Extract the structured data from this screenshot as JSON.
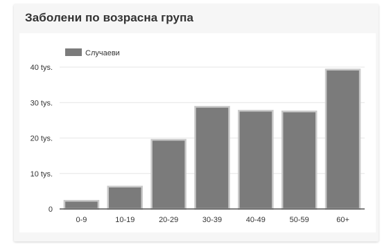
{
  "card": {
    "title": "Заболени по возрасна група"
  },
  "chart_data": {
    "type": "bar",
    "categories": [
      "0-9",
      "10-19",
      "20-29",
      "30-39",
      "40-49",
      "50-59",
      "60+"
    ],
    "series": [
      {
        "name": "Случаеви",
        "values": [
          2300,
          6300,
          19500,
          28800,
          27700,
          27500,
          39300
        ]
      }
    ],
    "ylim": [
      0,
      40000
    ],
    "yticks": [
      {
        "value": 0,
        "label": "0"
      },
      {
        "value": 10000,
        "label": "10 tys."
      },
      {
        "value": 20000,
        "label": "20 tys."
      },
      {
        "value": 30000,
        "label": "30 tys."
      },
      {
        "value": 40000,
        "label": "40 tys."
      }
    ],
    "grid": true,
    "legend": "top-left",
    "colors": {
      "bar_fill": "#7b7b7b",
      "bar_stroke": "#c9c9c9",
      "grid": "#e6e6e6",
      "axis": "#555555",
      "text": "#333333"
    }
  }
}
